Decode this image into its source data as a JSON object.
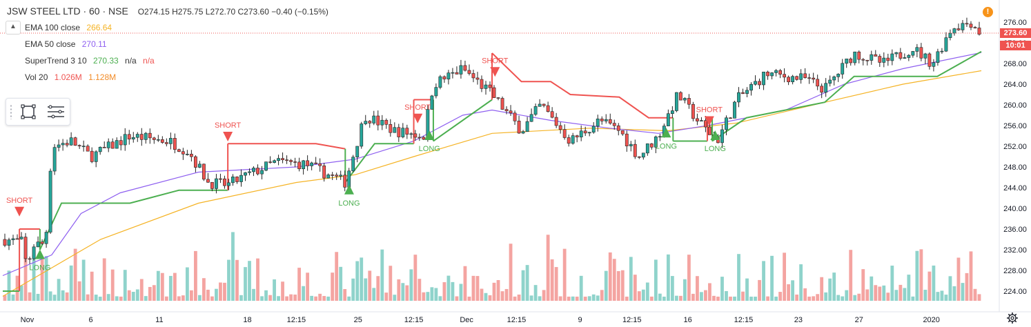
{
  "header": {
    "symbol_label": "JSW STEEL LTD · 60 · NSE",
    "ohlc": "O274.15 H275.75 L272.70 C273.60 −0.40 (−0.15%)",
    "collapse_glyph": "▲"
  },
  "legend": [
    {
      "name": "EMA 100 close",
      "values": [
        "266.64"
      ],
      "colors": [
        "#f5b324"
      ]
    },
    {
      "name": "EMA 50 close",
      "values": [
        "270.11"
      ],
      "colors": [
        "#8e5ff0"
      ]
    },
    {
      "name": "SuperTrend 3 10",
      "values": [
        "270.33",
        "n/a",
        "n/a"
      ],
      "colors": [
        "#4caf50",
        "#333333",
        "#ef5350"
      ]
    },
    {
      "name": "Vol 20",
      "values": [
        "1.026M",
        "1.128M"
      ],
      "colors": [
        "#ef5350",
        "#f28c28"
      ]
    }
  ],
  "alert_glyph": "!",
  "price_scale": {
    "labels": [
      "276.00",
      "272.00",
      "268.00",
      "264.00",
      "260.00",
      "256.00",
      "252.00",
      "248.00",
      "244.00",
      "240.00",
      "236.00",
      "232.00",
      "228.00",
      "224.00"
    ],
    "current_price": "273.60",
    "countdown": "10:01"
  },
  "time_scale": {
    "labels": [
      "Nov",
      "6",
      "11",
      "18",
      "12:15",
      "25",
      "12:15",
      "Dec",
      "12:15",
      "9",
      "12:15",
      "16",
      "12:15",
      "23",
      "27",
      "2020"
    ]
  },
  "signals": [
    {
      "type": "short",
      "label": "SHORT"
    },
    {
      "type": "long",
      "label": "LONG"
    },
    {
      "type": "short",
      "label": "SHORT"
    },
    {
      "type": "long",
      "label": "LONG"
    },
    {
      "type": "short",
      "label": "SHORT"
    },
    {
      "type": "long",
      "label": "LONG"
    },
    {
      "type": "short",
      "label": "SHORT"
    },
    {
      "type": "long",
      "label": "LONG"
    },
    {
      "type": "short",
      "label": "SHORT"
    },
    {
      "type": "long",
      "label": "LONG"
    }
  ],
  "colors": {
    "up": "#26a69a",
    "down": "#ef5350",
    "wick": "#222222",
    "vol_up": "#8fd3cb",
    "vol_down": "#f4a4a1",
    "ema50": "#8e5ff0",
    "ema100": "#f5b324",
    "st_up": "#4caf50",
    "st_down": "#ef5350",
    "price_box": "#ef5350",
    "countdown_box": "#ef5350"
  },
  "chart_data": {
    "type": "candlestick",
    "symbol": "JSW STEEL LTD",
    "interval": "60",
    "exchange": "NSE",
    "ylim": [
      222,
      278
    ],
    "x_ticks": [
      "Nov",
      "6",
      "11",
      "18",
      "12:15",
      "25",
      "12:15",
      "Dec",
      "12:15",
      "9",
      "12:15",
      "16",
      "12:15",
      "23",
      "27",
      "2020"
    ],
    "price_path": [
      {
        "t": 0,
        "p": 234
      },
      {
        "t": 0.02,
        "p": 233.5
      },
      {
        "t": 0.025,
        "p": 228
      },
      {
        "t": 0.03,
        "p": 233
      },
      {
        "t": 0.04,
        "p": 233
      },
      {
        "t": 0.045,
        "p": 236
      },
      {
        "t": 0.05,
        "p": 252
      },
      {
        "t": 0.07,
        "p": 253
      },
      {
        "t": 0.09,
        "p": 250
      },
      {
        "t": 0.13,
        "p": 254
      },
      {
        "t": 0.17,
        "p": 253
      },
      {
        "t": 0.19,
        "p": 251
      },
      {
        "t": 0.21,
        "p": 245
      },
      {
        "t": 0.23,
        "p": 244.5
      },
      {
        "t": 0.245,
        "p": 246
      },
      {
        "t": 0.28,
        "p": 249
      },
      {
        "t": 0.31,
        "p": 248.5
      },
      {
        "t": 0.35,
        "p": 245
      },
      {
        "t": 0.37,
        "p": 258
      },
      {
        "t": 0.4,
        "p": 255
      },
      {
        "t": 0.43,
        "p": 254
      },
      {
        "t": 0.44,
        "p": 264
      },
      {
        "t": 0.47,
        "p": 267
      },
      {
        "t": 0.5,
        "p": 262
      },
      {
        "t": 0.53,
        "p": 255
      },
      {
        "t": 0.55,
        "p": 260
      },
      {
        "t": 0.58,
        "p": 253
      },
      {
        "t": 0.61,
        "p": 257
      },
      {
        "t": 0.63,
        "p": 255
      },
      {
        "t": 0.65,
        "p": 250
      },
      {
        "t": 0.67,
        "p": 254
      },
      {
        "t": 0.69,
        "p": 262
      },
      {
        "t": 0.71,
        "p": 257
      },
      {
        "t": 0.73,
        "p": 253
      },
      {
        "t": 0.75,
        "p": 261
      },
      {
        "t": 0.78,
        "p": 266
      },
      {
        "t": 0.82,
        "p": 265
      },
      {
        "t": 0.84,
        "p": 263
      },
      {
        "t": 0.87,
        "p": 270
      },
      {
        "t": 0.9,
        "p": 268
      },
      {
        "t": 0.93,
        "p": 271
      },
      {
        "t": 0.95,
        "p": 268
      },
      {
        "t": 0.97,
        "p": 275
      },
      {
        "t": 0.99,
        "p": 276
      },
      {
        "t": 1.0,
        "p": 273.6
      }
    ],
    "ema50": [
      {
        "t": 0,
        "p": 227
      },
      {
        "t": 0.05,
        "p": 231
      },
      {
        "t": 0.08,
        "p": 239
      },
      {
        "t": 0.12,
        "p": 243
      },
      {
        "t": 0.2,
        "p": 247
      },
      {
        "t": 0.3,
        "p": 248
      },
      {
        "t": 0.36,
        "p": 249.5
      },
      {
        "t": 0.42,
        "p": 253
      },
      {
        "t": 0.47,
        "p": 258
      },
      {
        "t": 0.5,
        "p": 259
      },
      {
        "t": 0.56,
        "p": 257
      },
      {
        "t": 0.62,
        "p": 255.5
      },
      {
        "t": 0.67,
        "p": 254.5
      },
      {
        "t": 0.72,
        "p": 256
      },
      {
        "t": 0.8,
        "p": 259
      },
      {
        "t": 0.86,
        "p": 264
      },
      {
        "t": 0.92,
        "p": 267
      },
      {
        "t": 1.0,
        "p": 270.1
      }
    ],
    "ema100": [
      {
        "t": 0,
        "p": 223
      },
      {
        "t": 0.1,
        "p": 234
      },
      {
        "t": 0.2,
        "p": 241
      },
      {
        "t": 0.3,
        "p": 245
      },
      {
        "t": 0.36,
        "p": 246.5
      },
      {
        "t": 0.42,
        "p": 250
      },
      {
        "t": 0.5,
        "p": 254.5
      },
      {
        "t": 0.6,
        "p": 255.5
      },
      {
        "t": 0.68,
        "p": 255
      },
      {
        "t": 0.75,
        "p": 256.5
      },
      {
        "t": 0.84,
        "p": 260.5
      },
      {
        "t": 0.92,
        "p": 264
      },
      {
        "t": 1.0,
        "p": 266.6
      }
    ],
    "supertrend": [
      {
        "t": 0.0,
        "p": 224,
        "dir": "up"
      },
      {
        "t": 0.017,
        "p": 224,
        "dir": "up"
      },
      {
        "t": 0.017,
        "p": 236,
        "dir": "down"
      },
      {
        "t": 0.038,
        "p": 236,
        "dir": "down"
      },
      {
        "t": 0.038,
        "p": 232,
        "dir": "up"
      },
      {
        "t": 0.06,
        "p": 241,
        "dir": "up"
      },
      {
        "t": 0.13,
        "p": 241,
        "dir": "up"
      },
      {
        "t": 0.15,
        "p": 242,
        "dir": "up"
      },
      {
        "t": 0.18,
        "p": 243.5,
        "dir": "up"
      },
      {
        "t": 0.23,
        "p": 243.5,
        "dir": "up"
      },
      {
        "t": 0.23,
        "p": 252.5,
        "dir": "down"
      },
      {
        "t": 0.32,
        "p": 252.5,
        "dir": "down"
      },
      {
        "t": 0.35,
        "p": 251.5,
        "dir": "down"
      },
      {
        "t": 0.35,
        "p": 245,
        "dir": "up"
      },
      {
        "t": 0.38,
        "p": 252.5,
        "dir": "up"
      },
      {
        "t": 0.42,
        "p": 252.5,
        "dir": "up"
      },
      {
        "t": 0.42,
        "p": 261,
        "dir": "down"
      },
      {
        "t": 0.44,
        "p": 261,
        "dir": "down"
      },
      {
        "t": 0.44,
        "p": 253,
        "dir": "up"
      },
      {
        "t": 0.5,
        "p": 261,
        "dir": "up"
      },
      {
        "t": 0.5,
        "p": 270,
        "dir": "down"
      },
      {
        "t": 0.53,
        "p": 264.5,
        "dir": "down"
      },
      {
        "t": 0.56,
        "p": 264.5,
        "dir": "down"
      },
      {
        "t": 0.58,
        "p": 262,
        "dir": "down"
      },
      {
        "t": 0.63,
        "p": 261.5,
        "dir": "down"
      },
      {
        "t": 0.66,
        "p": 257.5,
        "dir": "down"
      },
      {
        "t": 0.685,
        "p": 257.5,
        "dir": "down"
      },
      {
        "t": 0.685,
        "p": 253,
        "dir": "up"
      },
      {
        "t": 0.72,
        "p": 253,
        "dir": "up"
      },
      {
        "t": 0.72,
        "p": 257.5,
        "dir": "down"
      },
      {
        "t": 0.725,
        "p": 257.5,
        "dir": "down"
      },
      {
        "t": 0.725,
        "p": 253,
        "dir": "up"
      },
      {
        "t": 0.76,
        "p": 257.5,
        "dir": "up"
      },
      {
        "t": 0.8,
        "p": 259,
        "dir": "up"
      },
      {
        "t": 0.84,
        "p": 260.5,
        "dir": "up"
      },
      {
        "t": 0.87,
        "p": 265.5,
        "dir": "up"
      },
      {
        "t": 0.955,
        "p": 265.5,
        "dir": "up"
      },
      {
        "t": 1.0,
        "p": 270.3,
        "dir": "up"
      }
    ],
    "volume_note": "Vol 20 histogram, last 1.026M, MA 1.128M"
  }
}
